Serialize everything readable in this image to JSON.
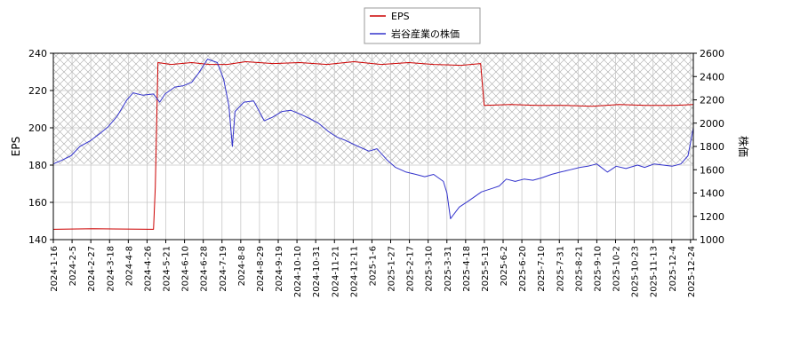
{
  "chart_data": {
    "type": "line",
    "legend_placement": "top-center",
    "grid": true,
    "shaded_band": "hatched area above stock-price y=1650 (right axis)",
    "left_axis": {
      "label": "EPS",
      "ylim": [
        140,
        240
      ],
      "ticks": [
        "140",
        "160",
        "180",
        "200",
        "220",
        "240"
      ]
    },
    "right_axis": {
      "label": "株価",
      "ylim": [
        1000,
        2600
      ],
      "ticks": [
        "1000",
        "1200",
        "1400",
        "1600",
        "1800",
        "2000",
        "2200",
        "2400",
        "2600"
      ]
    },
    "x_axis": {
      "range": [
        "2024-01-16",
        "2026-01-07"
      ],
      "ticks": [
        "2024-1-16",
        "2024-2-5",
        "2024-2-27",
        "2024-3-18",
        "2024-4-8",
        "2024-4-26",
        "2024-5-21",
        "2024-6-10",
        "2024-6-28",
        "2024-7-19",
        "2024-8-8",
        "2024-8-29",
        "2024-9-19",
        "2024-10-10",
        "2024-10-31",
        "2024-11-21",
        "2024-12-11",
        "2025-1-6",
        "2025-1-27",
        "2025-2-17",
        "2025-3-10",
        "2025-3-31",
        "2025-4-18",
        "2025-5-13",
        "2025-6-2",
        "2025-6-20",
        "2025-7-10",
        "2025-7-31",
        "2025-8-21",
        "2025-9-10",
        "2025-10-2",
        "2025-10-23",
        "2025-11-13",
        "2025-12-4",
        "2025-12-24"
      ]
    },
    "series": [
      {
        "name": "EPS",
        "axis": "left",
        "color": "#cc0000",
        "points": [
          [
            "2024-01-16",
            145.5
          ],
          [
            "2024-03-01",
            145.8
          ],
          [
            "2024-05-08",
            145.5
          ],
          [
            "2024-05-10",
            168
          ],
          [
            "2024-05-13",
            235
          ],
          [
            "2024-05-28",
            234
          ],
          [
            "2024-06-20",
            235
          ],
          [
            "2024-07-10",
            234
          ],
          [
            "2024-07-30",
            234
          ],
          [
            "2024-08-20",
            235.5
          ],
          [
            "2024-09-20",
            234.5
          ],
          [
            "2024-10-20",
            235
          ],
          [
            "2024-11-20",
            234
          ],
          [
            "2024-12-20",
            235.5
          ],
          [
            "2025-01-20",
            234
          ],
          [
            "2025-02-20",
            235
          ],
          [
            "2025-03-20",
            234
          ],
          [
            "2025-04-20",
            233.5
          ],
          [
            "2025-05-12",
            234.5
          ],
          [
            "2025-05-16",
            212
          ],
          [
            "2025-06-15",
            212.5
          ],
          [
            "2025-07-15",
            212
          ],
          [
            "2025-08-15",
            212
          ],
          [
            "2025-09-15",
            211.5
          ],
          [
            "2025-10-15",
            212.5
          ],
          [
            "2025-11-15",
            212
          ],
          [
            "2025-12-15",
            212
          ],
          [
            "2026-01-07",
            212.5
          ]
        ]
      },
      {
        "name": "岩谷産業の株価",
        "axis": "right",
        "color": "#3333cc",
        "points": [
          [
            "2024-01-16",
            1650
          ],
          [
            "2024-01-25",
            1680
          ],
          [
            "2024-02-05",
            1720
          ],
          [
            "2024-02-15",
            1800
          ],
          [
            "2024-02-27",
            1850
          ],
          [
            "2024-03-10",
            1920
          ],
          [
            "2024-03-18",
            1970
          ],
          [
            "2024-03-28",
            2060
          ],
          [
            "2024-04-08",
            2200
          ],
          [
            "2024-04-15",
            2260
          ],
          [
            "2024-04-26",
            2240
          ],
          [
            "2024-05-08",
            2250
          ],
          [
            "2024-05-15",
            2180
          ],
          [
            "2024-05-21",
            2250
          ],
          [
            "2024-06-01",
            2310
          ],
          [
            "2024-06-10",
            2320
          ],
          [
            "2024-06-20",
            2350
          ],
          [
            "2024-06-28",
            2430
          ],
          [
            "2024-07-08",
            2550
          ],
          [
            "2024-07-19",
            2520
          ],
          [
            "2024-07-26",
            2380
          ],
          [
            "2024-08-01",
            2150
          ],
          [
            "2024-08-05",
            1800
          ],
          [
            "2024-08-08",
            2100
          ],
          [
            "2024-08-18",
            2180
          ],
          [
            "2024-08-29",
            2190
          ],
          [
            "2024-09-10",
            2020
          ],
          [
            "2024-09-19",
            2050
          ],
          [
            "2024-09-30",
            2100
          ],
          [
            "2024-10-10",
            2110
          ],
          [
            "2024-10-20",
            2080
          ],
          [
            "2024-10-31",
            2040
          ],
          [
            "2024-11-10",
            2000
          ],
          [
            "2024-11-21",
            1930
          ],
          [
            "2024-12-01",
            1880
          ],
          [
            "2024-12-11",
            1850
          ],
          [
            "2024-12-25",
            1800
          ],
          [
            "2025-01-06",
            1760
          ],
          [
            "2025-01-15",
            1780
          ],
          [
            "2025-01-27",
            1680
          ],
          [
            "2025-02-05",
            1620
          ],
          [
            "2025-02-17",
            1580
          ],
          [
            "2025-02-28",
            1560
          ],
          [
            "2025-03-10",
            1540
          ],
          [
            "2025-03-20",
            1560
          ],
          [
            "2025-03-31",
            1500
          ],
          [
            "2025-04-04",
            1400
          ],
          [
            "2025-04-08",
            1180
          ],
          [
            "2025-04-18",
            1280
          ],
          [
            "2025-04-28",
            1330
          ],
          [
            "2025-05-13",
            1410
          ],
          [
            "2025-05-25",
            1440
          ],
          [
            "2025-06-02",
            1460
          ],
          [
            "2025-06-10",
            1520
          ],
          [
            "2025-06-20",
            1500
          ],
          [
            "2025-06-30",
            1520
          ],
          [
            "2025-07-10",
            1510
          ],
          [
            "2025-07-20",
            1530
          ],
          [
            "2025-07-31",
            1560
          ],
          [
            "2025-08-10",
            1580
          ],
          [
            "2025-08-21",
            1600
          ],
          [
            "2025-09-01",
            1620
          ],
          [
            "2025-09-10",
            1630
          ],
          [
            "2025-09-20",
            1650
          ],
          [
            "2025-10-02",
            1580
          ],
          [
            "2025-10-12",
            1630
          ],
          [
            "2025-10-23",
            1610
          ],
          [
            "2025-11-05",
            1640
          ],
          [
            "2025-11-13",
            1620
          ],
          [
            "2025-11-24",
            1650
          ],
          [
            "2025-12-04",
            1640
          ],
          [
            "2025-12-14",
            1630
          ],
          [
            "2025-12-24",
            1650
          ],
          [
            "2026-01-01",
            1720
          ],
          [
            "2026-01-07",
            1960
          ]
        ]
      }
    ]
  }
}
